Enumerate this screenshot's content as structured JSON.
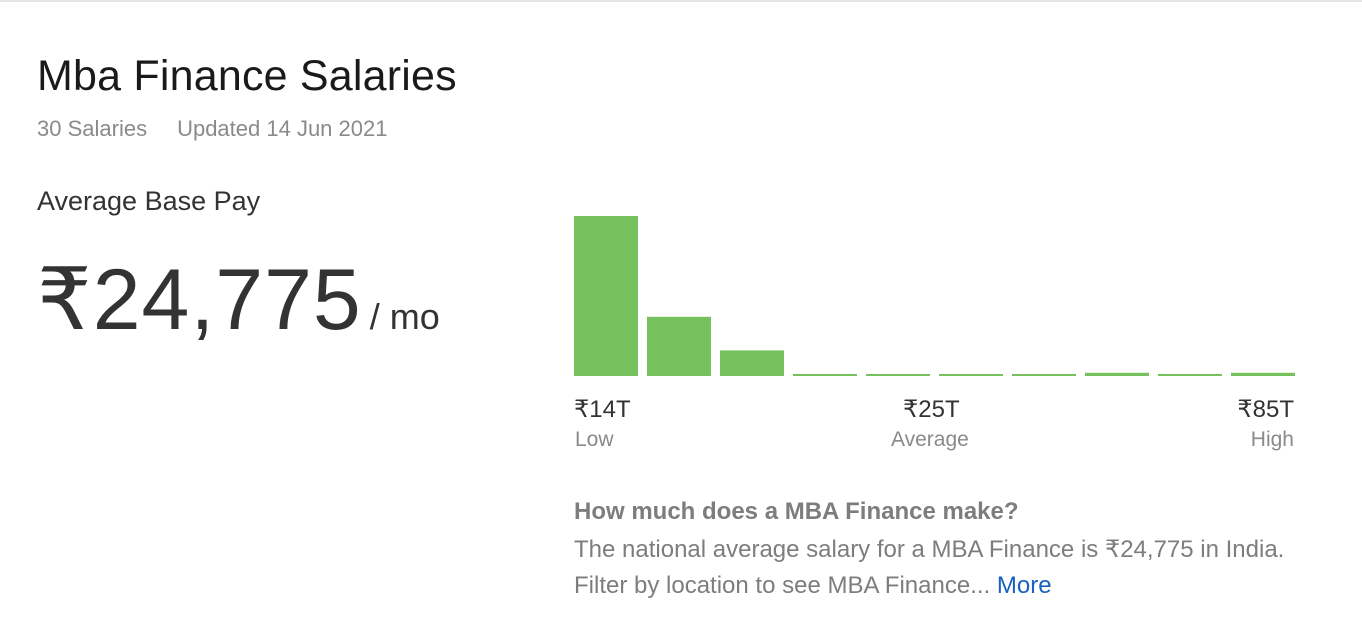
{
  "title": "Mba Finance Salaries",
  "meta": {
    "count": "30 Salaries",
    "updated": "Updated 14 Jun 2021"
  },
  "average": {
    "label": "Average Base Pay",
    "amount": "₹24,775",
    "unit": "/ mo"
  },
  "histogram": {
    "bar_color": "#77c05e",
    "low": {
      "value": "₹14T",
      "caption": "Low"
    },
    "avg": {
      "value": "₹25T",
      "caption": "Average"
    },
    "high": {
      "value": "₹85T",
      "caption": "High"
    }
  },
  "chart_data": {
    "type": "bar",
    "values": [
      100,
      37,
      16,
      1,
      1,
      1,
      1,
      2,
      1,
      2
    ],
    "ylim": [
      0,
      100
    ]
  },
  "faq": {
    "question": "How much does a MBA Finance make?",
    "answer": "The national average salary for a MBA Finance is ₹24,775 in India. Filter by location to see MBA Finance...",
    "more_label": "More"
  }
}
